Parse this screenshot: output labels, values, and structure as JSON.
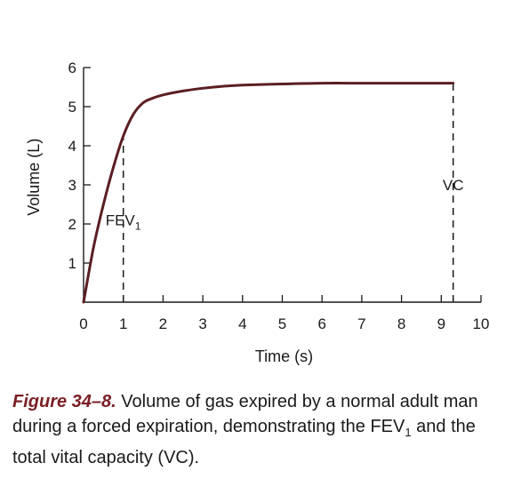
{
  "chart_data": {
    "type": "line",
    "xlabel": "Time (s)",
    "ylabel": "Volume (L)",
    "xlim": [
      0,
      10
    ],
    "ylim": [
      0,
      6
    ],
    "x_ticks": [
      0,
      1,
      2,
      3,
      4,
      5,
      6,
      7,
      8,
      9,
      10
    ],
    "y_ticks": [
      1,
      2,
      3,
      4,
      5,
      6
    ],
    "grid": false,
    "series": [
      {
        "color": "#5a1f22",
        "x": [
          0,
          0.25,
          0.5,
          0.75,
          1.0,
          1.25,
          1.5,
          1.75,
          2,
          2.5,
          3,
          3.5,
          4,
          5,
          6,
          7,
          8,
          9,
          9.3
        ],
        "y": [
          0,
          1.4,
          2.5,
          3.45,
          4.25,
          4.8,
          5.1,
          5.22,
          5.3,
          5.4,
          5.47,
          5.52,
          5.55,
          5.58,
          5.6,
          5.6,
          5.6,
          5.6,
          5.6
        ]
      }
    ],
    "annotations": [
      {
        "text": "FEV",
        "subscript": "1",
        "x": 1.0,
        "y": 2.1
      },
      {
        "text": "VC",
        "x": 9.3,
        "y": 3.0
      }
    ],
    "reference_lines": [
      {
        "style": "dashed",
        "x": 1.0,
        "y_from": 0,
        "y_to": 4.25
      },
      {
        "style": "dashed",
        "x": 9.3,
        "y_from": 0,
        "y_to": 5.6
      }
    ]
  },
  "caption": {
    "label": "Figure 34–8.",
    "text_part1": " Volume of gas expired by a normal adult man during a forced expiration, demonstrating the FEV",
    "subscript": "1",
    "text_part2": " and the total vital capacity (VC)."
  }
}
